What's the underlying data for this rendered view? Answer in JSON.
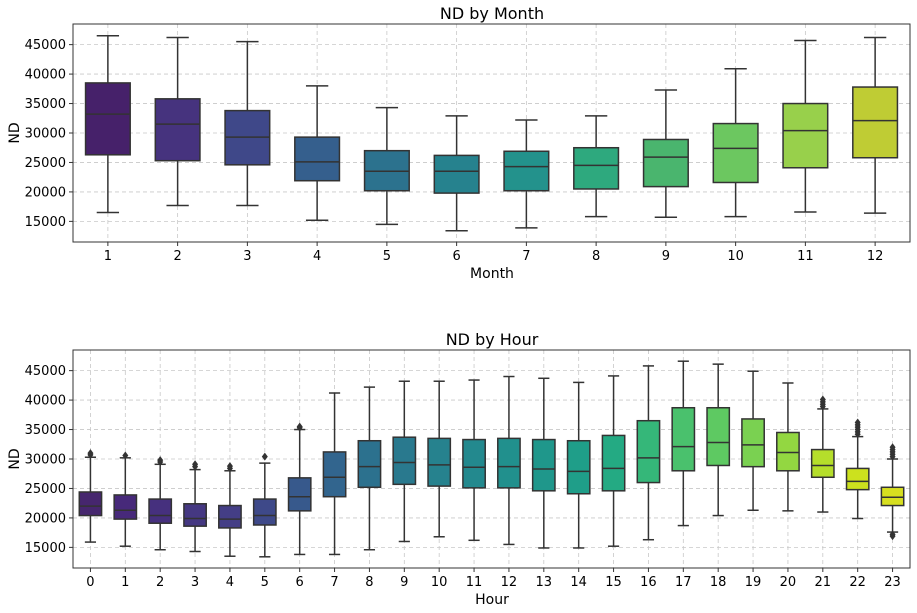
{
  "chart_data": [
    {
      "type": "box",
      "title": "ND by Month",
      "xlabel": "Month",
      "ylabel": "ND",
      "ylim": [
        11500,
        48500
      ],
      "yticks": [
        15000,
        20000,
        25000,
        30000,
        35000,
        40000,
        45000
      ],
      "grid": true,
      "categories": [
        "1",
        "2",
        "3",
        "4",
        "5",
        "6",
        "7",
        "8",
        "9",
        "10",
        "11",
        "12"
      ],
      "colors": [
        "#46216a",
        "#46337e",
        "#3f4889",
        "#355f8d",
        "#2c728e",
        "#26828e",
        "#23928c",
        "#2ea97e",
        "#4ab56e",
        "#6cc760",
        "#98d04b",
        "#bfcc34"
      ],
      "boxes": [
        {
          "whislo": 16500,
          "q1": 26300,
          "med": 33200,
          "q3": 38500,
          "whishi": 46500,
          "fliers": []
        },
        {
          "whislo": 17700,
          "q1": 25300,
          "med": 31500,
          "q3": 35800,
          "whishi": 46200,
          "fliers": []
        },
        {
          "whislo": 17700,
          "q1": 24600,
          "med": 29300,
          "q3": 33800,
          "whishi": 45500,
          "fliers": []
        },
        {
          "whislo": 15200,
          "q1": 21900,
          "med": 25100,
          "q3": 29300,
          "whishi": 38000,
          "fliers": []
        },
        {
          "whislo": 14500,
          "q1": 20200,
          "med": 23500,
          "q3": 27000,
          "whishi": 34300,
          "fliers": []
        },
        {
          "whislo": 13400,
          "q1": 19800,
          "med": 23500,
          "q3": 26200,
          "whishi": 32900,
          "fliers": []
        },
        {
          "whislo": 13900,
          "q1": 20200,
          "med": 24300,
          "q3": 26900,
          "whishi": 32200,
          "fliers": []
        },
        {
          "whislo": 15800,
          "q1": 20500,
          "med": 24500,
          "q3": 27500,
          "whishi": 32900,
          "fliers": []
        },
        {
          "whislo": 15700,
          "q1": 20900,
          "med": 25900,
          "q3": 28900,
          "whishi": 37300,
          "fliers": []
        },
        {
          "whislo": 15800,
          "q1": 21600,
          "med": 27400,
          "q3": 31600,
          "whishi": 40900,
          "fliers": []
        },
        {
          "whislo": 16600,
          "q1": 24100,
          "med": 30400,
          "q3": 35000,
          "whishi": 45700,
          "fliers": []
        },
        {
          "whislo": 16400,
          "q1": 25800,
          "med": 32100,
          "q3": 37800,
          "whishi": 46200,
          "fliers": []
        }
      ]
    },
    {
      "type": "box",
      "title": "ND by Hour",
      "xlabel": "Hour",
      "ylabel": "ND",
      "ylim": [
        11500,
        48500
      ],
      "yticks": [
        15000,
        20000,
        25000,
        30000,
        35000,
        40000,
        45000
      ],
      "grid": true,
      "categories": [
        "0",
        "1",
        "2",
        "3",
        "4",
        "5",
        "6",
        "7",
        "8",
        "9",
        "10",
        "11",
        "12",
        "13",
        "14",
        "15",
        "16",
        "17",
        "18",
        "19",
        "20",
        "21",
        "22",
        "23"
      ],
      "colors": [
        "#46266e",
        "#47297a",
        "#46307e",
        "#453882",
        "#443e86",
        "#3e4989",
        "#37598c",
        "#32658e",
        "#2c718e",
        "#29798e",
        "#26828e",
        "#23898e",
        "#21908d",
        "#1f978b",
        "#1f9e89",
        "#24aa83",
        "#35b779",
        "#4ac16d",
        "#5ec962",
        "#7ad151",
        "#93d741",
        "#b5de2b",
        "#cce11e",
        "#d7df20"
      ],
      "boxes": [
        {
          "whislo": 15900,
          "q1": 20400,
          "med": 22000,
          "q3": 24400,
          "whishi": 30300,
          "fliers": [
            30700,
            31000
          ]
        },
        {
          "whislo": 15200,
          "q1": 19800,
          "med": 21300,
          "q3": 23900,
          "whishi": 30200,
          "fliers": [
            30600
          ]
        },
        {
          "whislo": 14600,
          "q1": 19100,
          "med": 20400,
          "q3": 23200,
          "whishi": 29100,
          "fliers": [
            29500,
            29800
          ]
        },
        {
          "whislo": 14300,
          "q1": 18600,
          "med": 19900,
          "q3": 22400,
          "whishi": 28200,
          "fliers": [
            28700,
            29100
          ]
        },
        {
          "whislo": 13500,
          "q1": 18300,
          "med": 19800,
          "q3": 22100,
          "whishi": 28000,
          "fliers": [
            28400,
            28800
          ]
        },
        {
          "whislo": 13400,
          "q1": 18800,
          "med": 20400,
          "q3": 23200,
          "whishi": 29300,
          "fliers": [
            30400
          ]
        },
        {
          "whislo": 13800,
          "q1": 21200,
          "med": 23600,
          "q3": 26800,
          "whishi": 35000,
          "fliers": [
            35300,
            35500
          ]
        },
        {
          "whislo": 13800,
          "q1": 23600,
          "med": 26900,
          "q3": 31200,
          "whishi": 41200,
          "fliers": []
        },
        {
          "whislo": 14600,
          "q1": 25200,
          "med": 28700,
          "q3": 33100,
          "whishi": 42200,
          "fliers": []
        },
        {
          "whislo": 16000,
          "q1": 25700,
          "med": 29400,
          "q3": 33700,
          "whishi": 43200,
          "fliers": []
        },
        {
          "whislo": 16800,
          "q1": 25400,
          "med": 29000,
          "q3": 33500,
          "whishi": 43200,
          "fliers": []
        },
        {
          "whislo": 16200,
          "q1": 25100,
          "med": 28600,
          "q3": 33300,
          "whishi": 43400,
          "fliers": []
        },
        {
          "whislo": 15500,
          "q1": 25100,
          "med": 28700,
          "q3": 33500,
          "whishi": 44000,
          "fliers": []
        },
        {
          "whislo": 14900,
          "q1": 24600,
          "med": 28300,
          "q3": 33300,
          "whishi": 43700,
          "fliers": []
        },
        {
          "whislo": 14900,
          "q1": 24100,
          "med": 27900,
          "q3": 33100,
          "whishi": 43000,
          "fliers": []
        },
        {
          "whislo": 15200,
          "q1": 24600,
          "med": 28400,
          "q3": 34000,
          "whishi": 44100,
          "fliers": []
        },
        {
          "whislo": 16300,
          "q1": 26000,
          "med": 30200,
          "q3": 36500,
          "whishi": 45800,
          "fliers": []
        },
        {
          "whislo": 18700,
          "q1": 28000,
          "med": 32100,
          "q3": 38700,
          "whishi": 46600,
          "fliers": []
        },
        {
          "whislo": 20400,
          "q1": 28900,
          "med": 32800,
          "q3": 38700,
          "whishi": 46100,
          "fliers": []
        },
        {
          "whislo": 21300,
          "q1": 28700,
          "med": 32400,
          "q3": 36800,
          "whishi": 44900,
          "fliers": []
        },
        {
          "whislo": 21200,
          "q1": 28000,
          "med": 31100,
          "q3": 34500,
          "whishi": 42900,
          "fliers": []
        },
        {
          "whislo": 21000,
          "q1": 26900,
          "med": 28900,
          "q3": 31600,
          "whishi": 38500,
          "fliers": [
            38900,
            39300,
            39700,
            40100
          ]
        },
        {
          "whislo": 19900,
          "q1": 24800,
          "med": 26200,
          "q3": 28400,
          "whishi": 33800,
          "fliers": [
            34200,
            34600,
            35000,
            35400,
            35800,
            36200
          ]
        },
        {
          "whislo": 17600,
          "q1": 22100,
          "med": 23500,
          "q3": 25200,
          "whishi": 30000,
          "fliers": [
            17200,
            16900,
            30400,
            30800,
            31200,
            31600,
            32000
          ]
        }
      ]
    }
  ]
}
